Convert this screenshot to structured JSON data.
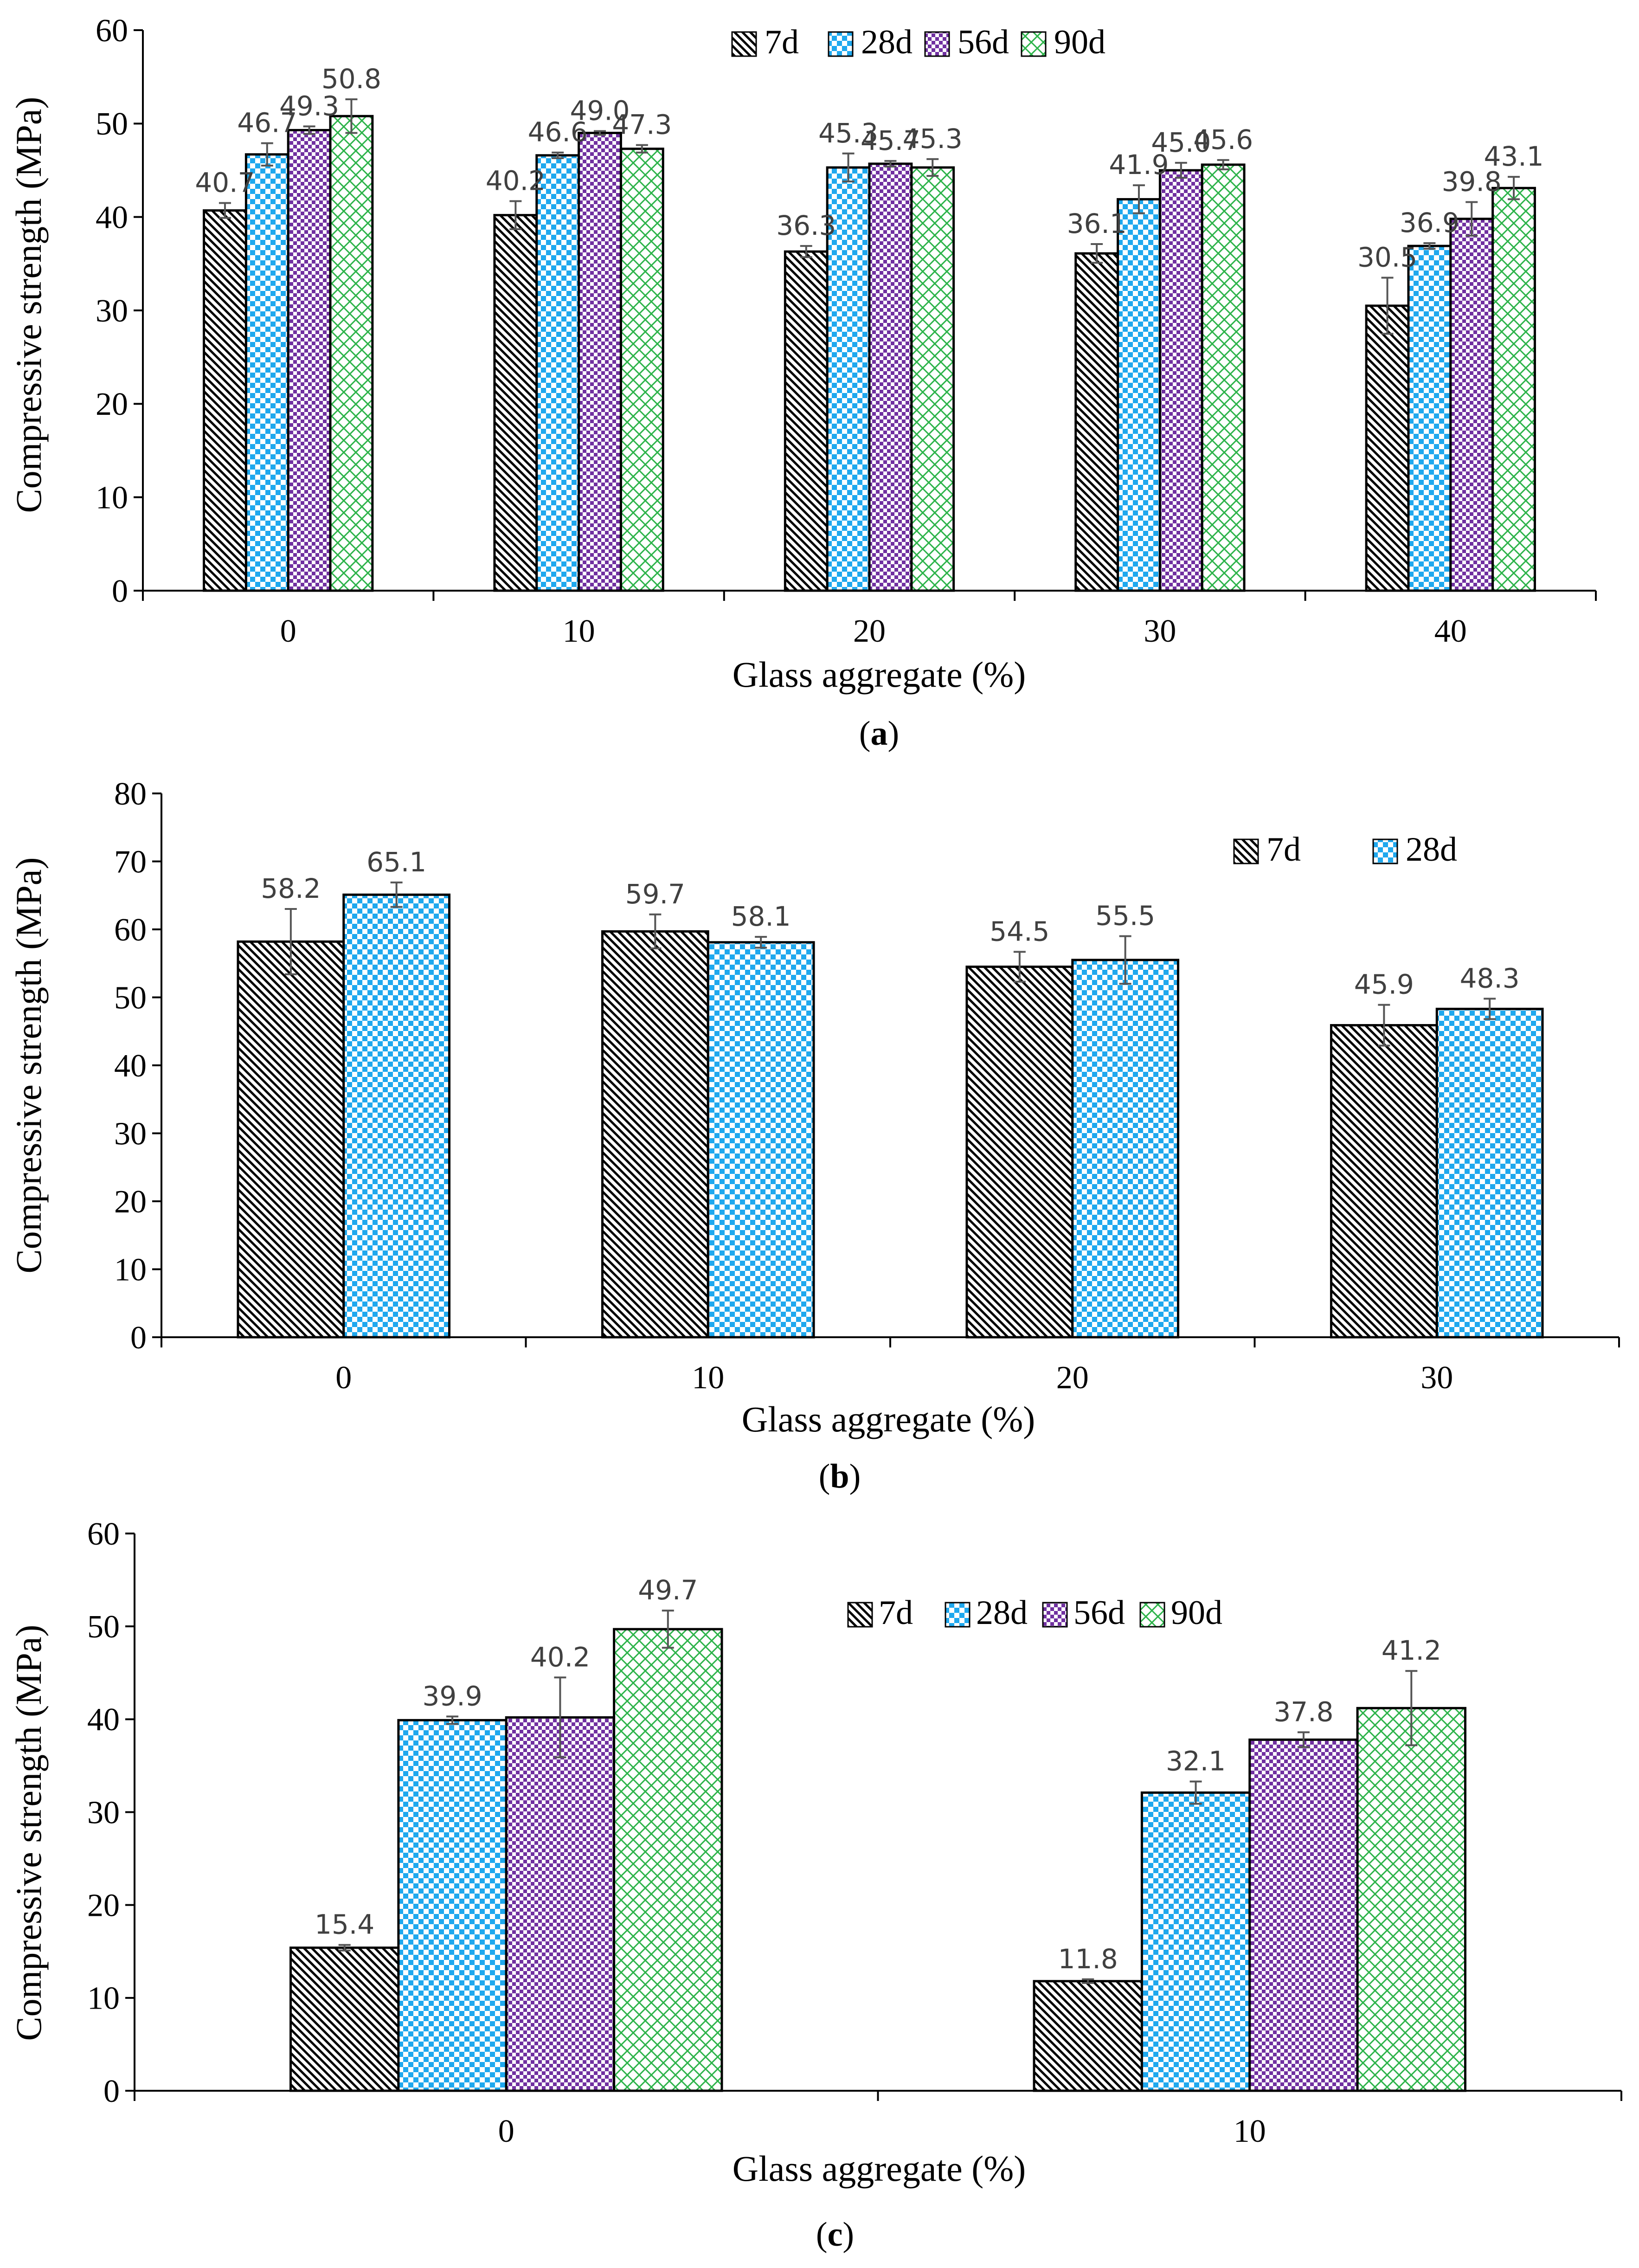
{
  "chart_data": [
    {
      "type": "bar",
      "panel_label": "a",
      "xlabel": "Glass aggregate (%)",
      "ylabel": "Compressive strength (MPa)",
      "ylim": [
        0,
        60
      ],
      "yticks": [
        0,
        10,
        20,
        30,
        40,
        50,
        60
      ],
      "categories": [
        "0",
        "10",
        "20",
        "30",
        "40"
      ],
      "legend": "top-center",
      "series": [
        {
          "name": "7d",
          "pattern": "hatch-diag",
          "values": [
            40.7,
            40.2,
            36.3,
            36.1,
            30.5
          ],
          "labels": [
            "40.7",
            "40.2",
            "36.3",
            "36.1",
            "30.5"
          ],
          "errors": [
            0.8,
            1.5,
            0.6,
            1.0,
            3.0
          ]
        },
        {
          "name": "28d",
          "pattern": "checker-blue",
          "values": [
            46.7,
            46.6,
            45.3,
            41.9,
            36.9
          ],
          "labels": [
            "46.7",
            "46.6",
            "45.3",
            "41.9",
            "36.9"
          ],
          "errors": [
            1.2,
            0.3,
            1.5,
            1.5,
            0.3
          ]
        },
        {
          "name": "56d",
          "pattern": "checker-purple",
          "values": [
            49.3,
            49.0,
            45.7,
            45.0,
            39.8
          ],
          "labels": [
            "49.3",
            "49.0",
            "45.7",
            "45.0",
            "39.8"
          ],
          "errors": [
            0.4,
            0.2,
            0.3,
            0.8,
            1.8
          ]
        },
        {
          "name": "90d",
          "pattern": "crosshatch-green",
          "values": [
            50.8,
            47.3,
            45.3,
            45.6,
            43.1
          ],
          "labels": [
            "50.8",
            "47.3",
            "45.3",
            "45.6",
            "43.1"
          ],
          "errors": [
            1.8,
            0.4,
            0.9,
            0.5,
            1.2
          ]
        }
      ]
    },
    {
      "type": "bar",
      "panel_label": "b",
      "xlabel": "Glass aggregate (%)",
      "ylabel": "Compressive strength (MPa)",
      "ylim": [
        0,
        80
      ],
      "yticks": [
        0,
        10,
        20,
        30,
        40,
        50,
        60,
        70,
        80
      ],
      "categories": [
        "0",
        "10",
        "20",
        "30"
      ],
      "legend": "top-right",
      "series": [
        {
          "name": "7d",
          "pattern": "hatch-diag",
          "values": [
            58.2,
            59.7,
            54.5,
            45.9
          ],
          "labels": [
            "58.2",
            "59.7",
            "54.5",
            "45.9"
          ],
          "errors": [
            4.8,
            2.5,
            2.2,
            3.0
          ]
        },
        {
          "name": "28d",
          "pattern": "checker-blue",
          "values": [
            65.1,
            58.1,
            55.5,
            48.3
          ],
          "labels": [
            "65.1",
            "58.1",
            "55.5",
            "48.3"
          ],
          "errors": [
            1.8,
            0.8,
            3.5,
            1.5
          ]
        }
      ]
    },
    {
      "type": "bar",
      "panel_label": "c",
      "xlabel": "Glass aggregate (%)",
      "ylabel": "Compressive strength (MPa)",
      "ylim": [
        0,
        60
      ],
      "yticks": [
        0,
        10,
        20,
        30,
        40,
        50,
        60
      ],
      "categories": [
        "0",
        "10"
      ],
      "legend": "top-right",
      "series": [
        {
          "name": "7d",
          "pattern": "hatch-diag",
          "values": [
            15.4,
            11.8
          ],
          "labels": [
            "15.4",
            "11.8"
          ],
          "errors": [
            0.3,
            0.2
          ]
        },
        {
          "name": "28d",
          "pattern": "checker-blue",
          "values": [
            39.9,
            32.1
          ],
          "labels": [
            "39.9",
            "32.1"
          ],
          "errors": [
            0.4,
            1.2
          ]
        },
        {
          "name": "56d",
          "pattern": "checker-purple",
          "values": [
            40.2,
            37.8
          ],
          "labels": [
            "40.2",
            "37.8"
          ],
          "errors": [
            4.3,
            0.8
          ]
        },
        {
          "name": "90d",
          "pattern": "crosshatch-green",
          "values": [
            49.7,
            41.2
          ],
          "labels": [
            "49.7",
            "41.2"
          ],
          "errors": [
            2.0,
            4.0
          ]
        }
      ]
    }
  ],
  "colors": {
    "axis": "#000000",
    "bar_outline": "#000000",
    "value_label": "#404040",
    "error_bar": "#555555",
    "hatch": "#000000",
    "checker_blue": "#1fa8ee",
    "checker_purple": "#7030a0",
    "crosshatch_green": "#2db34a"
  }
}
